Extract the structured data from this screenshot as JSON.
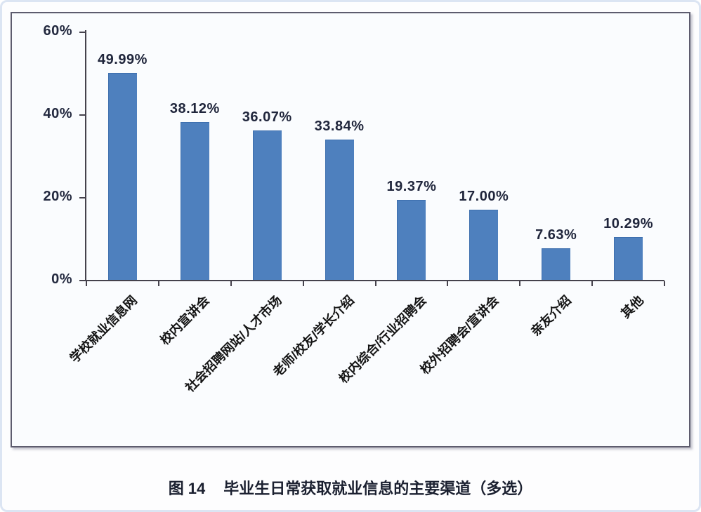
{
  "caption": {
    "prefix": "图 14",
    "text": "毕业生日常获取就业信息的主要渠道（多选）"
  },
  "chart_data": {
    "type": "bar",
    "title": "毕业生日常获取就业信息的主要渠道（多选）",
    "categories": [
      "学校就业信息网",
      "校内宣讲会",
      "社会招聘网站/人才市场",
      "老师/校友/学长介绍",
      "校内综合/行业招聘会",
      "校外招聘会/宣讲会",
      "亲友介绍",
      "其他"
    ],
    "values": [
      49.99,
      38.12,
      36.07,
      33.84,
      19.37,
      17.0,
      7.63,
      10.29
    ],
    "value_labels": [
      "49.99%",
      "38.12%",
      "36.07%",
      "33.84%",
      "19.37%",
      "17.00%",
      "7.63%",
      "10.29%"
    ],
    "xlabel": "",
    "ylabel": "",
    "ylim": [
      0,
      60
    ],
    "yticks": [
      {
        "value": 0,
        "label": "0%"
      },
      {
        "value": 20,
        "label": "20%"
      },
      {
        "value": 40,
        "label": "40%"
      },
      {
        "value": 60,
        "label": "60%"
      }
    ],
    "grid": false,
    "legend": false,
    "bar_color": "#4E80BE",
    "bar_border_color": "#3D6FAE",
    "axis_color": "#45424C",
    "tick_text_color": "#23293F",
    "value_text_color": "#20263C",
    "category_text_color": "#141414"
  }
}
